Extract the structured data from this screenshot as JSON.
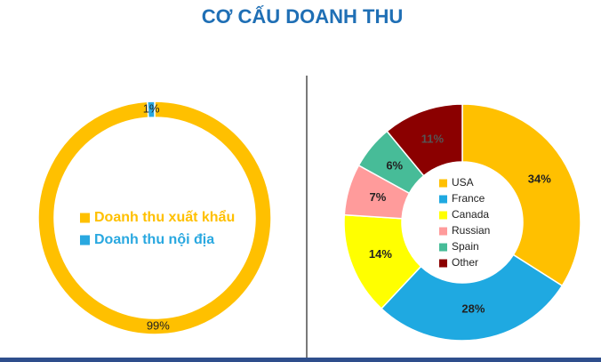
{
  "title": "CƠ CẤU DOANH THU",
  "chart_data": [
    {
      "type": "pie",
      "categories": [
        "Doanh thu xuất khẩu",
        "Doanh thu nội địa"
      ],
      "values": [
        99,
        1
      ],
      "value_labels": [
        "99%",
        "1%"
      ],
      "colors": [
        "#FFC000",
        "#29A8E0"
      ]
    },
    {
      "type": "pie",
      "categories": [
        "USA",
        "France",
        "Canada",
        "Russian",
        "Spain",
        "Other"
      ],
      "values": [
        34,
        28,
        14,
        7,
        6,
        11
      ],
      "value_labels": [
        "34%",
        "28%",
        "14%",
        "7%",
        "6%",
        "11%"
      ],
      "colors": [
        "#FFC000",
        "#1FA9E1",
        "#FFFF00",
        "#FF9B9B",
        "#47BC98",
        "#8B0000"
      ]
    }
  ]
}
